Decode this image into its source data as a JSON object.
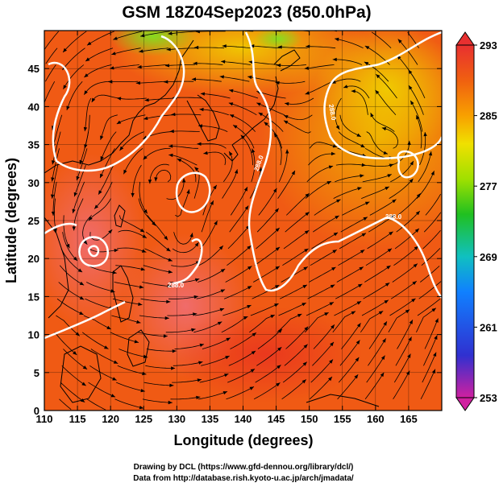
{
  "title": "GSM 18Z04Sep2023 (850.0hPa)",
  "x_axis": {
    "label": "Longitude (degrees)",
    "range": [
      110,
      170
    ],
    "ticks": [
      "110",
      "115",
      "120",
      "125",
      "130",
      "135",
      "140",
      "145",
      "150",
      "155",
      "160",
      "165"
    ]
  },
  "y_axis": {
    "label": "Latitude  (degrees)",
    "range": [
      0,
      50
    ],
    "ticks": [
      "0",
      "5",
      "10",
      "15",
      "20",
      "25",
      "30",
      "35",
      "40",
      "45"
    ]
  },
  "colorbar": {
    "min": 253,
    "max": 293,
    "ticks": [
      "293",
      "285",
      "277",
      "269",
      "261",
      "253"
    ],
    "colors": [
      "#d020a0",
      "#3030d0",
      "#1080ff",
      "#10c0c0",
      "#20c020",
      "#a0e000",
      "#f0e000",
      "#f8a000",
      "#f06010",
      "#e83030"
    ]
  },
  "credits": {
    "line1": "Drawing by DCL (https://www.gfd-dennou.org/library/dcl/)",
    "line2": "Data from http://database.rish.kyoto-u.ac.jp/arch/jmadata/"
  },
  "contour_labels": [
    "288.0",
    "288.0",
    "288.0",
    "288.0"
  ]
}
